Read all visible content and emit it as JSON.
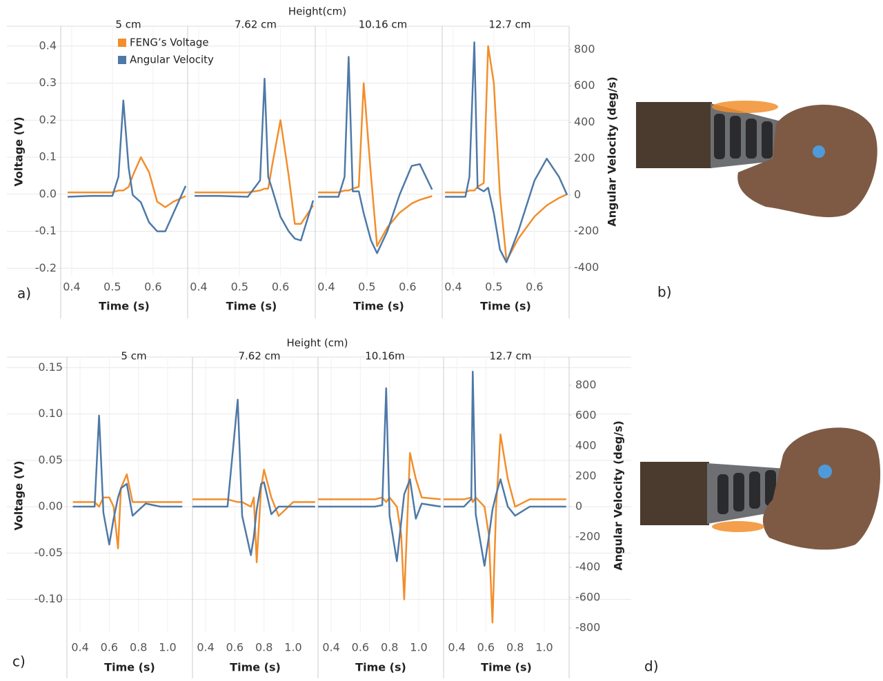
{
  "chart_data": [
    {
      "type": "line",
      "title": "Height(cm)",
      "panel_label": "a)",
      "xlabel": "Time (s)",
      "ylabel": "Voltage (V)",
      "y2label": "Angular Velocity (deg/s)",
      "grid": true,
      "legend_position": "upper left",
      "series": [
        {
          "name": "FENG’s Voltage",
          "color": "#f28e2b"
        },
        {
          "name": "Angular Velocity",
          "color": "#4e79a7",
          "axis": "y2"
        }
      ],
      "xlim": [
        0.373,
        0.685
      ],
      "xticks": [
        0.4,
        0.5,
        0.6
      ],
      "ylim": [
        -0.22,
        0.45
      ],
      "yticks": [
        0.4,
        0.3,
        0.2,
        0.1,
        {
          "value": 0,
          "label": "0.0"
        },
        -0.1,
        -0.2
      ],
      "y2lim": [
        -444,
        921
      ],
      "y2ticks": [
        800,
        600,
        400,
        200,
        0,
        -200,
        -400
      ],
      "panels": [
        {
          "title": "5 cm",
          "x": [
            0.39,
            0.45,
            0.5,
            0.515,
            0.527,
            0.54,
            0.55,
            0.57,
            0.59,
            0.61,
            0.63,
            0.65,
            0.68
          ],
          "series": [
            {
              "values": [
                0.005,
                0.005,
                0.005,
                0.01,
                0.01,
                0.02,
                0.05,
                0.1,
                0.06,
                -0.02,
                -0.035,
                -0.02,
                -0.005
              ]
            },
            {
              "values": [
                -10,
                -5,
                -5,
                100,
                520,
                150,
                0,
                -40,
                -150,
                -200,
                -200,
                -100,
                50
              ]
            }
          ]
        },
        {
          "title": "7.62 cm",
          "x": [
            0.39,
            0.45,
            0.52,
            0.55,
            0.561,
            0.57,
            0.58,
            0.6,
            0.62,
            0.635,
            0.65,
            0.68
          ],
          "series": [
            {
              "values": [
                0.005,
                0.005,
                0.005,
                0.01,
                0.015,
                0.015,
                0.08,
                0.2,
                0.05,
                -0.08,
                -0.08,
                -0.03
              ]
            },
            {
              "values": [
                -5,
                -5,
                -10,
                80,
                640,
                100,
                30,
                -120,
                -200,
                -240,
                -250,
                -30
              ]
            }
          ]
        },
        {
          "title": "10.16 cm",
          "x": [
            0.38,
            0.43,
            0.445,
            0.455,
            0.465,
            0.48,
            0.492,
            0.51,
            0.525,
            0.55,
            0.58,
            0.61,
            0.63,
            0.66
          ],
          "series": [
            {
              "values": [
                0.005,
                0.005,
                0.01,
                0.01,
                0.015,
                0.02,
                0.3,
                0.05,
                -0.14,
                -0.09,
                -0.05,
                -0.025,
                -0.015,
                -0.005
              ]
            },
            {
              "values": [
                -10,
                -10,
                100,
                760,
                20,
                20,
                -100,
                -250,
                -320,
                -200,
                0,
                160,
                170,
                30
              ]
            }
          ]
        },
        {
          "title": "12.7 cm",
          "x": [
            0.38,
            0.43,
            0.44,
            0.452,
            0.46,
            0.475,
            0.486,
            0.5,
            0.515,
            0.531,
            0.56,
            0.6,
            0.63,
            0.66,
            0.68
          ],
          "series": [
            {
              "values": [
                0.005,
                0.005,
                0.01,
                0.01,
                0.02,
                0.03,
                0.4,
                0.3,
                0.0,
                -0.18,
                -0.12,
                -0.06,
                -0.03,
                -0.01,
                0.0
              ]
            },
            {
              "values": [
                -10,
                -10,
                100,
                840,
                40,
                20,
                40,
                -100,
                -300,
                -370,
                -200,
                80,
                200,
                100,
                0
              ]
            }
          ]
        }
      ]
    },
    {
      "type": "line",
      "title": "Height (cm)",
      "panel_label": "c)",
      "xlabel": "Time (s)",
      "ylabel": "Voltage (V)",
      "y2label": "Angular Velocity (deg/s)",
      "grid": true,
      "series": [
        {
          "color": "#f28e2b"
        },
        {
          "color": "#4e79a7",
          "axis": "y2"
        }
      ],
      "xlim": [
        0.31,
        1.17
      ],
      "xticks": [
        0.4,
        0.6,
        0.8,
        {
          "value": 1,
          "label": "1.0"
        }
      ],
      "ylim": [
        -0.136,
        0.16
      ],
      "yticks": [
        0.15,
        {
          "value": 0.1,
          "label": "0.10"
        },
        0.05,
        {
          "value": 0,
          "label": "0.00"
        },
        -0.05,
        {
          "value": -0.1,
          "label": "-0.10"
        }
      ],
      "y2lim": [
        -832,
        977
      ],
      "y2ticks": [
        800,
        600,
        400,
        200,
        0,
        -200,
        -400,
        -600,
        -800
      ],
      "panels": [
        {
          "title": "5 cm",
          "x": [
            0.35,
            0.45,
            0.5,
            0.53,
            0.56,
            0.6,
            0.63,
            0.66,
            0.68,
            0.72,
            0.76,
            0.85,
            0.95,
            1.1
          ],
          "series": [
            {
              "values": [
                0.005,
                0.005,
                0.005,
                0.0,
                0.01,
                0.01,
                0.0,
                -0.045,
                0.02,
                0.035,
                0.005,
                0.005,
                0.005,
                0.005
              ]
            },
            {
              "values": [
                0,
                0,
                0,
                600,
                -40,
                -250,
                -80,
                60,
                120,
                150,
                -60,
                20,
                0,
                0
              ]
            }
          ]
        },
        {
          "title": "7.62 cm",
          "x": [
            0.31,
            0.45,
            0.55,
            0.62,
            0.65,
            0.71,
            0.73,
            0.75,
            0.78,
            0.8,
            0.85,
            0.9,
            1.0,
            1.15
          ],
          "series": [
            {
              "values": [
                0.008,
                0.008,
                0.008,
                0.005,
                0.005,
                0.0,
                0.01,
                -0.06,
                0.02,
                0.04,
                0.01,
                -0.01,
                0.005,
                0.005
              ]
            },
            {
              "values": [
                0,
                0,
                0,
                705,
                -60,
                -320,
                -200,
                -20,
                150,
                160,
                -50,
                0,
                0,
                0
              ]
            }
          ]
        },
        {
          "title": "10.16m",
          "x": [
            0.31,
            0.5,
            0.7,
            0.75,
            0.777,
            0.8,
            0.85,
            0.88,
            0.9,
            0.94,
            0.98,
            1.02,
            1.15
          ],
          "series": [
            {
              "values": [
                0.008,
                0.008,
                0.008,
                0.01,
                0.005,
                0.01,
                0.0,
                -0.03,
                -0.1,
                0.058,
                0.03,
                0.01,
                0.008
              ]
            },
            {
              "values": [
                0,
                0,
                0,
                10,
                780,
                -60,
                -360,
                -100,
                80,
                180,
                -80,
                20,
                0
              ]
            }
          ]
        },
        {
          "title": "12.7 cm",
          "x": [
            0.31,
            0.45,
            0.5,
            0.51,
            0.53,
            0.59,
            0.62,
            0.645,
            0.67,
            0.7,
            0.75,
            0.8,
            0.9,
            1.15
          ],
          "series": [
            {
              "values": [
                0.008,
                0.008,
                0.01,
                0.005,
                0.01,
                0.0,
                -0.03,
                -0.125,
                0.0,
                0.078,
                0.03,
                0.0,
                0.008,
                0.008
              ]
            },
            {
              "values": [
                0,
                0,
                50,
                890,
                -50,
                -390,
                -200,
                -20,
                80,
                180,
                0,
                -60,
                0,
                0
              ]
            }
          ]
        }
      ]
    }
  ],
  "images": [
    {
      "label": "b)"
    },
    {
      "label": "d)"
    }
  ]
}
